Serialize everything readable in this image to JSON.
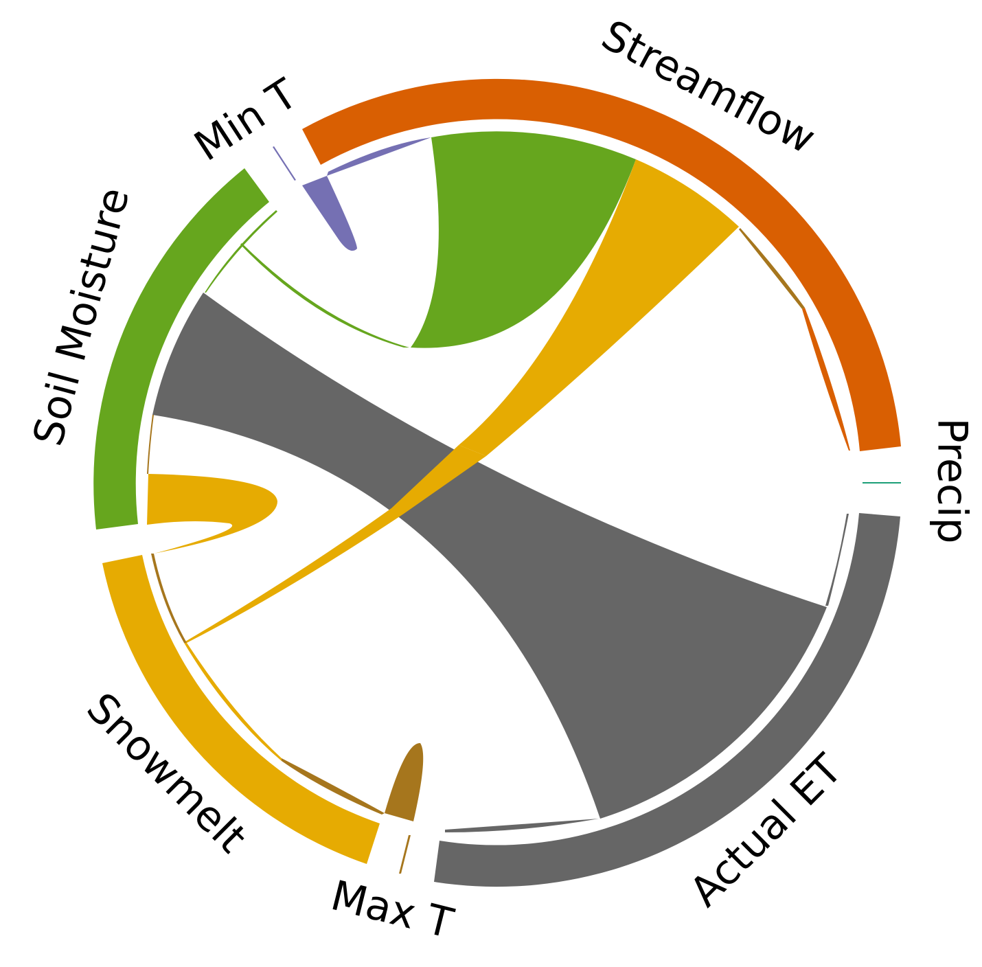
{
  "chart_data": {
    "type": "chord",
    "title": "",
    "nodes": [
      {
        "label": "Precip",
        "color": "#1b9e77"
      },
      {
        "label": "Actual ET",
        "color": "#666666"
      },
      {
        "label": "Max T",
        "color": "#a6761d"
      },
      {
        "label": "Snowmelt",
        "color": "#e6ab02"
      },
      {
        "label": "Soil Moisture",
        "color": "#66a61e"
      },
      {
        "label": "Min T",
        "color": "#7570b3"
      },
      {
        "label": "Streamflow",
        "color": "#d95f02"
      }
    ],
    "links": [
      {
        "source": "Actual ET",
        "target": "Soil Moisture",
        "color": "#666666"
      },
      {
        "source": "Actual ET",
        "target": "Max T",
        "color": "#666666"
      },
      {
        "source": "Actual ET",
        "target": "Streamflow",
        "color": "#666666"
      },
      {
        "source": "Soil Moisture",
        "target": "Streamflow",
        "color": "#66a61e"
      },
      {
        "source": "Soil Moisture",
        "target": "Soil Moisture",
        "color": "#66a61e"
      },
      {
        "source": "Snowmelt",
        "target": "Streamflow",
        "color": "#e6ab02"
      },
      {
        "source": "Snowmelt",
        "target": "Snowmelt",
        "color": "#e6ab02"
      },
      {
        "source": "Snowmelt",
        "target": "Soil Moisture",
        "color": "#e6ab02"
      },
      {
        "source": "Max T",
        "target": "Max T",
        "color": "#a6761d"
      },
      {
        "source": "Max T",
        "target": "Snowmelt",
        "color": "#a6761d"
      },
      {
        "source": "Max T",
        "target": "Streamflow",
        "color": "#a6761d"
      },
      {
        "source": "Max T",
        "target": "Soil Moisture",
        "color": "#a6761d"
      },
      {
        "source": "Min T",
        "target": "Min T",
        "color": "#7570b3"
      },
      {
        "source": "Min T",
        "target": "Streamflow",
        "color": "#7570b3"
      }
    ]
  }
}
